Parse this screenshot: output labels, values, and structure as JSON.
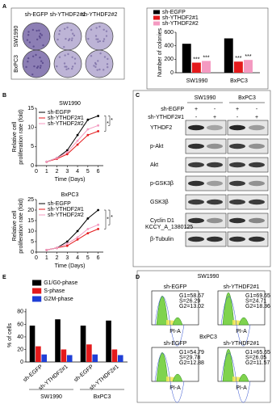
{
  "panel_labels": [
    "A",
    "B",
    "C",
    "D",
    "E"
  ],
  "colony_assay": {
    "columns": [
      "sh-EGFP",
      "sh-YTHDF2#1",
      "sh-YTHDF2#2"
    ],
    "rows": [
      "SW1990",
      "BxPC3"
    ]
  },
  "western_blot": {
    "cell_lines": [
      "SW1990",
      "BxPC3"
    ],
    "conditions": [
      {
        "name": "sh-EGFP",
        "lanes": [
          "+",
          "-",
          "+",
          "-"
        ]
      },
      {
        "name": "sh-YTHDF2#1",
        "lanes": [
          "-",
          "+",
          "-",
          "+"
        ]
      }
    ],
    "proteins": [
      "YTHDF2",
      "p-Akt",
      "Akt",
      "p-GSK3β",
      "GSK3β",
      "Cyclin D1",
      "β-Tubulin"
    ],
    "watermark": "KCCY_A_1380125"
  },
  "flow_cytometry": {
    "panels": [
      {
        "cell_line": "SW1990",
        "samples": [
          {
            "name": "sh-EGFP",
            "stats": [
              "G1=58.67",
              "S=26.29",
              "G2=13.02"
            ],
            "x_label": "PI-A"
          },
          {
            "name": "sh-YTHDF2#1",
            "stats": [
              "G1=69.65",
              "S=24.71",
              "G2=18.36"
            ],
            "x_label": "PI-A"
          }
        ]
      },
      {
        "cell_line": "BxPC3",
        "samples": [
          {
            "name": "sh-EGFP",
            "stats": [
              "G1=54.79",
              "S=29.78",
              "G2=12.88"
            ],
            "x_label": "PI-A"
          },
          {
            "name": "sh-YTHDF2#1",
            "stats": [
              "G1=65.65",
              "S=26.05",
              "G2=11.57"
            ],
            "x_label": "PI-A"
          }
        ]
      }
    ]
  },
  "chart_data": [
    {
      "type": "bar",
      "y_label": "Number of colonies",
      "categories": [
        "SW1990",
        "BxPC3"
      ],
      "series": [
        {
          "name": "sh-EGFP",
          "color": "#000000",
          "values": [
            430,
            510
          ]
        },
        {
          "name": "sh-YTHDF2#1",
          "color": "#e41a1c",
          "values": [
            150,
            165
          ],
          "annotations": [
            "***",
            "***"
          ]
        },
        {
          "name": "sh-YTHDF2#2",
          "color": "#f49ac1",
          "values": [
            175,
            190
          ],
          "annotations": [
            "***",
            "***"
          ]
        }
      ],
      "ylim": [
        0,
        600
      ],
      "yticks": [
        0,
        200,
        400,
        600
      ],
      "legend": "upper left"
    },
    {
      "type": "line",
      "title": "SW1990",
      "x_label": "Time (Days)",
      "y_label": [
        "Relative cell",
        "proliferation rate (fold)"
      ],
      "x": [
        1,
        2,
        3,
        4,
        5,
        6
      ],
      "series": [
        {
          "name": "sh-EGFP",
          "color": "#000000",
          "values": [
            1,
            2,
            4,
            8,
            12,
            13
          ]
        },
        {
          "name": "sh-YTHDF2#1",
          "color": "#e41a1c",
          "values": [
            1,
            1.8,
            3,
            5.5,
            8,
            9
          ]
        },
        {
          "name": "sh-YTHDF2#2",
          "color": "#f49ac1",
          "values": [
            1,
            2,
            3.5,
            6.5,
            9.5,
            10.5
          ]
        }
      ],
      "annotations": [
        "*",
        "*"
      ],
      "xlim": [
        0,
        6.5
      ],
      "xticks": [
        0,
        1,
        2,
        3,
        4,
        5,
        6
      ],
      "ylim": [
        0,
        15
      ],
      "yticks": [
        0,
        5,
        10,
        15
      ],
      "legend": "upper left"
    },
    {
      "type": "line",
      "title": "BxPC3",
      "x_label": "Time (Days)",
      "y_label": [
        "Relative cell",
        "proliferation rate (fold)"
      ],
      "x": [
        1,
        2,
        3,
        4,
        5,
        6
      ],
      "series": [
        {
          "name": "sh-EGFP",
          "color": "#000000",
          "values": [
            1,
            2,
            5,
            10,
            16,
            20
          ]
        },
        {
          "name": "sh-YTHDF2#1",
          "color": "#e41a1c",
          "values": [
            1,
            2,
            3,
            6,
            9,
            11
          ]
        },
        {
          "name": "sh-YTHDF2#2",
          "color": "#f49ac1",
          "values": [
            1,
            2,
            4,
            7,
            11,
            13
          ]
        }
      ],
      "annotations": [
        "*",
        "*"
      ],
      "xlim": [
        0,
        6.5
      ],
      "xticks": [
        0,
        1,
        2,
        3,
        4,
        5,
        6
      ],
      "ylim": [
        0,
        25
      ],
      "yticks": [
        0,
        5,
        10,
        15,
        20,
        25
      ],
      "legend": "upper left"
    },
    {
      "type": "bar",
      "y_label": "% of cells",
      "categories": [
        "sh-EGFP",
        "sh-YTHDF2#1",
        "sh-EGFP",
        "sh-YTHDF2#1"
      ],
      "category_groups": [
        "SW1990",
        "BxPC3"
      ],
      "series": [
        {
          "name": "G1/G0-phase",
          "color": "#000000",
          "values": [
            58,
            68,
            58,
            66
          ]
        },
        {
          "name": "S-phase",
          "color": "#e41a1c",
          "values": [
            25,
            20,
            28,
            20
          ]
        },
        {
          "name": "G2M-phase",
          "color": "#1f3fd6",
          "values": [
            12,
            11,
            12,
            11
          ]
        }
      ],
      "ylim": [
        0,
        85
      ],
      "yticks": [
        0,
        20,
        40,
        60,
        80
      ],
      "legend": "upper left"
    }
  ]
}
